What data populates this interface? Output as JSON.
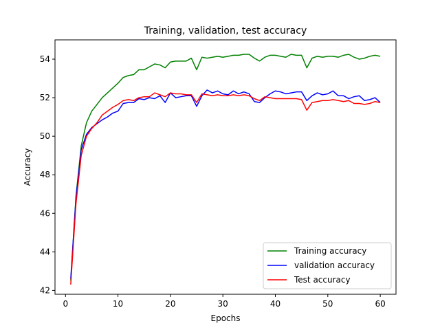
{
  "chart_data": {
    "type": "line",
    "title": "Training, validation, test accuracy",
    "xlabel": "Epochs",
    "ylabel": "Accuracy",
    "xlim": [
      -2,
      63
    ],
    "ylim": [
      41.8,
      55.0
    ],
    "xticks": [
      0,
      10,
      20,
      30,
      40,
      50,
      60
    ],
    "yticks": [
      42,
      44,
      46,
      48,
      50,
      52,
      54
    ],
    "grid": false,
    "legend_position": "lower-right",
    "x": [
      1,
      2,
      3,
      4,
      5,
      6,
      7,
      8,
      9,
      10,
      11,
      12,
      13,
      14,
      15,
      16,
      17,
      18,
      19,
      20,
      21,
      22,
      23,
      24,
      25,
      26,
      27,
      28,
      29,
      30,
      31,
      32,
      33,
      34,
      35,
      36,
      37,
      38,
      39,
      40,
      41,
      42,
      43,
      44,
      45,
      46,
      47,
      48,
      49,
      50,
      51,
      52,
      53,
      54,
      55,
      56,
      57,
      58,
      59,
      60
    ],
    "series": [
      {
        "name": "Training accuracy",
        "color": "#008000",
        "values": [
          42.5,
          46.9,
          49.5,
          50.7,
          51.3,
          51.65,
          52.0,
          52.25,
          52.5,
          52.75,
          53.05,
          53.15,
          53.2,
          53.45,
          53.45,
          53.6,
          53.75,
          53.7,
          53.55,
          53.85,
          53.9,
          53.9,
          53.9,
          54.05,
          53.45,
          54.1,
          54.05,
          54.1,
          54.15,
          54.1,
          54.15,
          54.2,
          54.2,
          54.25,
          54.25,
          54.05,
          53.9,
          54.1,
          54.2,
          54.2,
          54.15,
          54.1,
          54.25,
          54.2,
          54.2,
          53.55,
          54.05,
          54.15,
          54.1,
          54.15,
          54.15,
          54.1,
          54.2,
          54.25,
          54.1,
          54.0,
          54.05,
          54.15,
          54.2,
          54.15
        ]
      },
      {
        "name": "validation accuracy",
        "color": "#0000ff",
        "values": [
          42.6,
          46.8,
          49.3,
          50.1,
          50.45,
          50.65,
          50.85,
          51.0,
          51.2,
          51.3,
          51.7,
          51.75,
          51.75,
          51.95,
          51.9,
          52.0,
          51.95,
          52.1,
          51.75,
          52.25,
          52.0,
          52.05,
          52.1,
          52.1,
          51.55,
          52.1,
          52.4,
          52.25,
          52.35,
          52.2,
          52.15,
          52.35,
          52.2,
          52.3,
          52.2,
          51.8,
          51.75,
          52.0,
          52.2,
          52.35,
          52.3,
          52.2,
          52.25,
          52.3,
          52.3,
          51.85,
          52.1,
          52.25,
          52.15,
          52.2,
          52.35,
          52.1,
          52.1,
          51.95,
          52.05,
          52.1,
          51.85,
          51.9,
          52.0,
          51.75
        ]
      },
      {
        "name": "Test accuracy",
        "color": "#ff0000",
        "values": [
          42.3,
          46.5,
          49.0,
          50.0,
          50.4,
          50.7,
          51.1,
          51.3,
          51.5,
          51.65,
          51.85,
          51.9,
          51.85,
          52.0,
          52.05,
          52.05,
          52.25,
          52.15,
          52.05,
          52.25,
          52.2,
          52.2,
          52.15,
          52.15,
          51.75,
          52.2,
          52.15,
          52.1,
          52.15,
          52.1,
          52.1,
          52.15,
          52.1,
          52.15,
          52.1,
          51.95,
          51.85,
          52.05,
          52.0,
          51.95,
          51.95,
          51.95,
          51.95,
          51.95,
          51.9,
          51.35,
          51.75,
          51.8,
          51.85,
          51.85,
          51.9,
          51.85,
          51.8,
          51.85,
          51.7,
          51.7,
          51.65,
          51.7,
          51.8,
          51.75
        ]
      }
    ]
  }
}
